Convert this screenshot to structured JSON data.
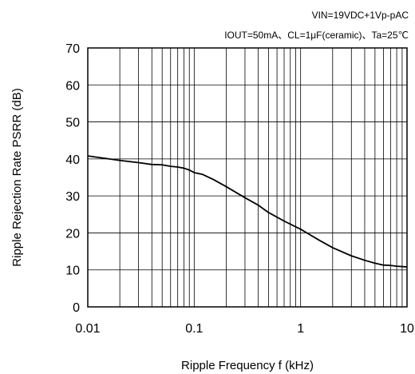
{
  "conditions": {
    "line1": "VIN=19VDC+1Vp-pAC",
    "line2": "IOUT=50mA、CL=1μF(ceramic)、Ta=25℃"
  },
  "chart_data": {
    "type": "line",
    "title": "",
    "xlabel": "Ripple Frequency  f  (kHz)",
    "ylabel": "Ripple Rejection Rate  PSRR  (dB)",
    "x_scale": "log",
    "xlim": [
      0.01,
      10
    ],
    "ylim": [
      0,
      70
    ],
    "x_ticks": [
      0.01,
      0.1,
      1,
      10
    ],
    "x_tick_labels": [
      "0.01",
      "0.1",
      "1",
      "10"
    ],
    "y_ticks": [
      0,
      10,
      20,
      30,
      40,
      50,
      60,
      70
    ],
    "y_tick_labels": [
      "0",
      "10",
      "20",
      "30",
      "40",
      "50",
      "60",
      "70"
    ],
    "grid": true,
    "series": [
      {
        "color": "#000000",
        "x": [
          0.01,
          0.015,
          0.02,
          0.03,
          0.04,
          0.05,
          0.06,
          0.07,
          0.08,
          0.09,
          0.1,
          0.12,
          0.15,
          0.2,
          0.3,
          0.4,
          0.5,
          0.7,
          1,
          1.5,
          2,
          3,
          4,
          5,
          6,
          7,
          8,
          10
        ],
        "y": [
          40.8,
          40.1,
          39.6,
          39.0,
          38.5,
          38.4,
          38.0,
          37.8,
          37.5,
          37.0,
          36.3,
          35.8,
          34.5,
          32.5,
          29.5,
          27.5,
          25.5,
          23.2,
          21.0,
          18.0,
          16.0,
          13.8,
          12.6,
          11.8,
          11.3,
          11.2,
          11.0,
          10.8
        ]
      }
    ]
  }
}
